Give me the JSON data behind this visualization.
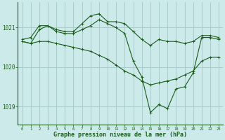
{
  "xlabel": "Graphe pression niveau de la mer (hPa)",
  "background_color": "#cceaea",
  "grid_color": "#aacccc",
  "line_color": "#1a5c1a",
  "xlim": [
    -0.5,
    23.5
  ],
  "ylim": [
    1018.55,
    1021.65
  ],
  "yticks": [
    1019,
    1020,
    1021
  ],
  "xticks": [
    0,
    1,
    2,
    3,
    4,
    5,
    6,
    7,
    8,
    9,
    10,
    11,
    12,
    13,
    14,
    15,
    16,
    17,
    18,
    19,
    20,
    21,
    22,
    23
  ],
  "line1": {
    "x": [
      0,
      1,
      2,
      3,
      4,
      5,
      6,
      7,
      8,
      9,
      10,
      11,
      12,
      13,
      14,
      15,
      16,
      17,
      18,
      19,
      20,
      21,
      22,
      23
    ],
    "y": [
      1020.7,
      1020.75,
      1021.05,
      1021.05,
      1020.95,
      1020.9,
      1020.9,
      1021.1,
      1021.3,
      1021.35,
      1021.15,
      1021.15,
      1021.1,
      1020.9,
      1020.7,
      1020.55,
      1020.7,
      1020.65,
      1020.65,
      1020.6,
      1020.65,
      1020.8,
      1020.8,
      1020.75
    ]
  },
  "line2": {
    "x": [
      0,
      1,
      2,
      3,
      4,
      5,
      6,
      7,
      8,
      9,
      10,
      11,
      12,
      13,
      14,
      15,
      16,
      17,
      18,
      19,
      20,
      21,
      22,
      23
    ],
    "y": [
      1020.65,
      1020.6,
      1020.95,
      1021.05,
      1020.9,
      1020.85,
      1020.85,
      1020.95,
      1021.05,
      1021.2,
      1021.1,
      1021.0,
      1020.85,
      1020.15,
      1019.75,
      1018.85,
      1019.05,
      1018.95,
      1019.45,
      1019.5,
      1019.85,
      1020.75,
      1020.75,
      1020.7
    ]
  },
  "line3": {
    "x": [
      0,
      1,
      2,
      3,
      4,
      5,
      6,
      7,
      8,
      9,
      10,
      11,
      12,
      13,
      14,
      15,
      16,
      17,
      18,
      19,
      20,
      21,
      22,
      23
    ],
    "y": [
      1020.65,
      1020.6,
      1020.65,
      1020.65,
      1020.6,
      1020.55,
      1020.5,
      1020.45,
      1020.4,
      1020.3,
      1020.2,
      1020.05,
      1019.9,
      1019.8,
      1019.65,
      1019.55,
      1019.6,
      1019.65,
      1019.7,
      1019.8,
      1019.9,
      1020.15,
      1020.25,
      1020.25
    ]
  }
}
